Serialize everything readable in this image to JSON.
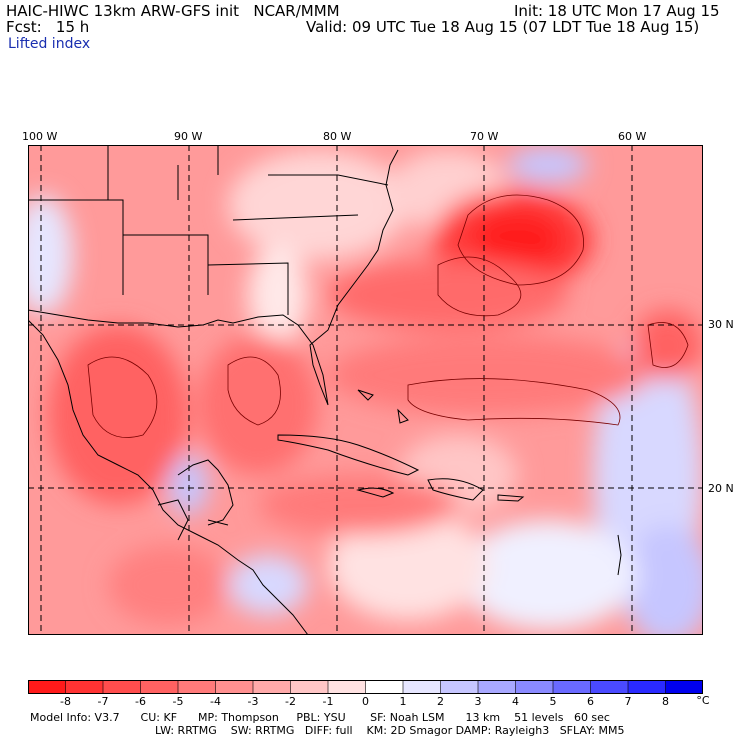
{
  "header": {
    "model_line": "HAIC-HIWC 13km ARW-GFS init   NCAR/MMM",
    "forecast_line": "Fcst:   15 h",
    "init_line": "Init: 18 UTC Mon 17 Aug 15",
    "valid_line": "Valid: 09 UTC Tue 18 Aug 15 (07 LDT Tue 18 Aug 15)",
    "field_name": "Lifted index"
  },
  "map": {
    "longitude_labels": [
      "100 W",
      "90 W",
      "80 W",
      "70 W",
      "60 W"
    ],
    "latitude_labels": [
      "30 N",
      "20 N"
    ]
  },
  "colorbar": {
    "labels": [
      "-8",
      "-7",
      "-6",
      "-5",
      "-4",
      "-3",
      "-2",
      "-1",
      "0",
      "1",
      "2",
      "3",
      "4",
      "5",
      "6",
      "7",
      "8"
    ],
    "unit": "°C",
    "colors": [
      "#ff1a1a",
      "#ff3333",
      "#ff4d4d",
      "#ff6262",
      "#ff7a7a",
      "#ff9090",
      "#ffaaaa",
      "#ffc6c6",
      "#ffe2e2",
      "#ffffff",
      "#e6e6ff",
      "#c6c6ff",
      "#a8a8ff",
      "#8a8aff",
      "#6a6aff",
      "#4a4aff",
      "#2a2aff",
      "#0000ee"
    ]
  },
  "model_info": {
    "line1": "Model Info: V3.7      CU: KF      MP: Thompson     PBL: YSU       SF: Noah LSM      13 km    51 levels   60 sec",
    "line2": "LW: RRTMG    SW: RRTMG   DIFF: full    KM: 2D Smagor DAMP: Rayleigh3   SFLAY: MM5"
  }
}
